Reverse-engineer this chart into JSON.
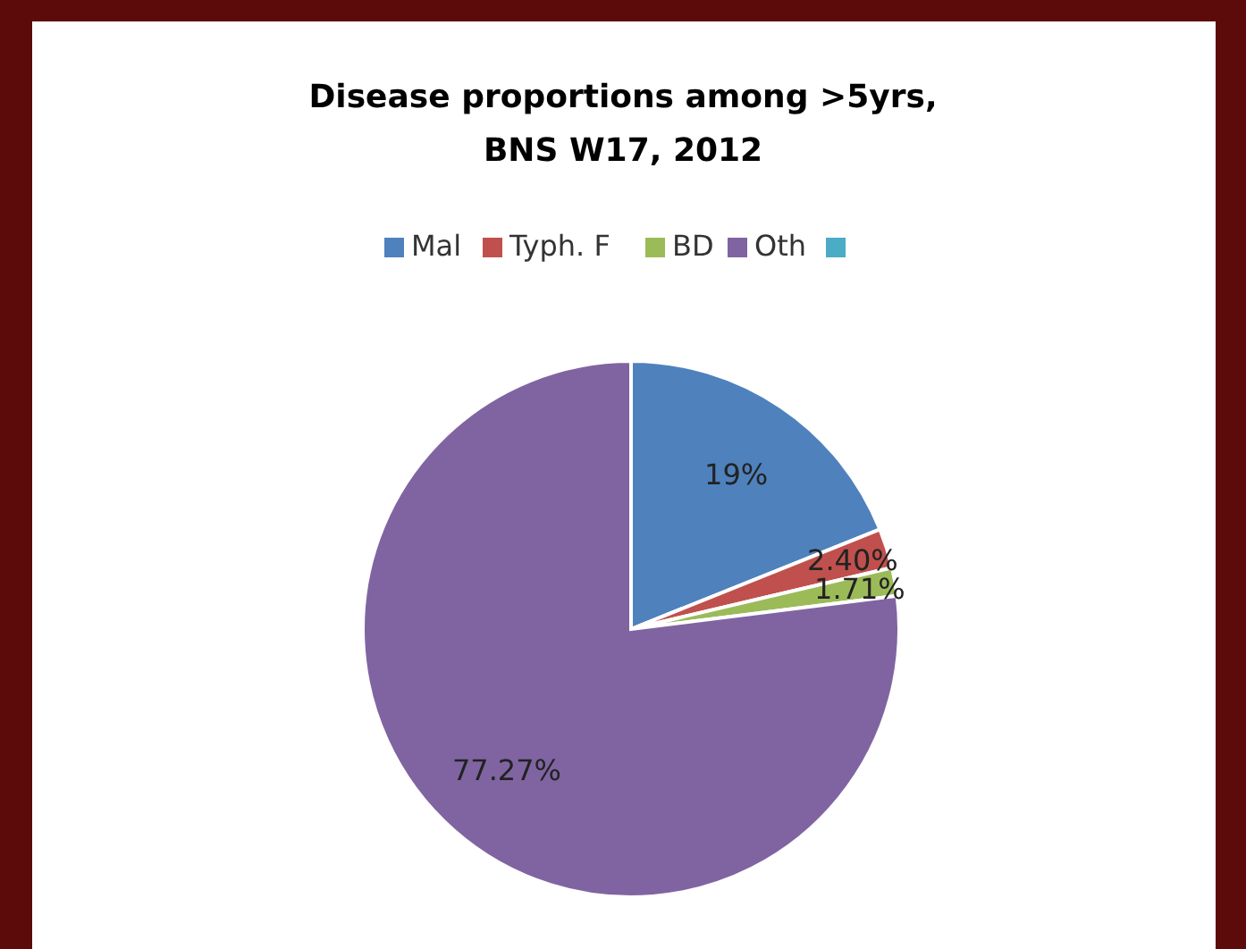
{
  "chart_data": {
    "type": "pie",
    "title": "Disease proportions among >5yrs, BNS W17, 2012",
    "categories": [
      "Mal",
      "Typh. F",
      "BD",
      "Oth",
      null
    ],
    "values": [
      19,
      2.4,
      1.71,
      77.27,
      0
    ],
    "colors": [
      "#4f81bd",
      "#c0504d",
      "#9bbb59",
      "#8064a2",
      "#4bacc6"
    ],
    "value_labels": [
      "19%",
      "2.40%",
      "1.71%",
      "77.27%",
      null
    ],
    "legend": "top"
  }
}
